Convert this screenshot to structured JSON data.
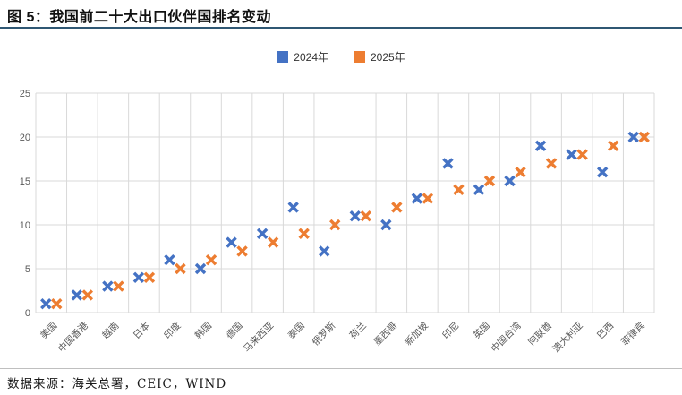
{
  "header": {
    "title": "图 5：我国前二十大出口伙伴国排名变动"
  },
  "legend": {
    "items": [
      {
        "label": "2024年",
        "color": "#4472C4"
      },
      {
        "label": "2025年",
        "color": "#ED7D31"
      }
    ]
  },
  "chart_data": {
    "type": "scatter",
    "title": "我国前二十大出口伙伴国排名变动",
    "marker": "x",
    "grid": true,
    "legend_position": "top",
    "xlabel": "",
    "ylabel": "",
    "ylim": [
      0,
      25
    ],
    "yticks": [
      0,
      5,
      10,
      15,
      20,
      25
    ],
    "categories": [
      "美国",
      "中国香港",
      "越南",
      "日本",
      "印度",
      "韩国",
      "德国",
      "马来西亚",
      "泰国",
      "俄罗斯",
      "荷兰",
      "墨西哥",
      "新加坡",
      "印尼",
      "英国",
      "中国台湾",
      "阿联酋",
      "澳大利亚",
      "巴西",
      "菲律宾"
    ],
    "series": [
      {
        "name": "2024年",
        "key": "2024",
        "color": "#4472C4",
        "values": [
          1,
          2,
          3,
          4,
          6,
          5,
          8,
          9,
          12,
          7,
          11,
          10,
          13,
          17,
          14,
          15,
          19,
          18,
          16,
          20
        ]
      },
      {
        "name": "2025年",
        "key": "2025",
        "color": "#ED7D31",
        "values": [
          1,
          2,
          3,
          4,
          5,
          6,
          7,
          8,
          9,
          10,
          11,
          12,
          13,
          14,
          15,
          16,
          17,
          18,
          19,
          20
        ]
      }
    ],
    "axis_colors": {
      "gridline": "#D9D9D9",
      "tick_label": "#595959"
    }
  },
  "footer": {
    "source": "数据来源：海关总署，CEIC，WIND"
  }
}
